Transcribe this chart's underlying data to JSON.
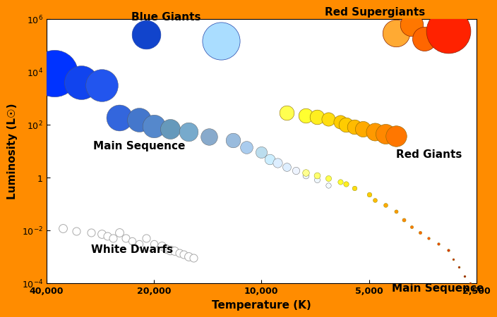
{
  "xlabel": "Temperature (K)",
  "ylabel": "Luminosity (L☉)",
  "xlim": [
    40000,
    2500
  ],
  "ylim": [
    0.0001,
    1000000.0
  ],
  "border_color": "#FF8C00",
  "background_color": "#ffffff",
  "main_sequence_blue": {
    "temps": [
      38000,
      32000,
      28000,
      25000,
      22000,
      20000,
      18000,
      16000,
      14000,
      12000,
      11000,
      10000,
      9500,
      9000,
      8500,
      8000,
      7500,
      7000,
      6500
    ],
    "lums": [
      9000,
      4000,
      3000,
      180,
      150,
      90,
      70,
      55,
      35,
      25,
      14,
      9,
      5,
      3.5,
      2.5,
      1.8,
      1.2,
      0.8,
      0.5
    ],
    "sizes": [
      90,
      65,
      62,
      50,
      46,
      44,
      38,
      36,
      32,
      28,
      24,
      22,
      20,
      18,
      16,
      14,
      12,
      11,
      10
    ],
    "colors": [
      "#0033ff",
      "#1144ee",
      "#2255ee",
      "#3366dd",
      "#4477cc",
      "#5588cc",
      "#6699bb",
      "#77aacc",
      "#88aacc",
      "#99bbdd",
      "#aaccee",
      "#bbddee",
      "#cceeff",
      "#ddeeff",
      "#ddeeff",
      "#eef4ff",
      "#eef6ff",
      "#f0f8ff",
      "#f4faff"
    ]
  },
  "main_sequence_yellow_red": {
    "temps": [
      7500,
      7000,
      6500,
      6000,
      5800,
      5500,
      5000,
      4800,
      4500,
      4200,
      4000,
      3800,
      3600,
      3400,
      3200,
      3000,
      2900,
      2800,
      2700,
      2600
    ],
    "lums": [
      1.5,
      1.2,
      0.9,
      0.7,
      0.55,
      0.4,
      0.22,
      0.14,
      0.09,
      0.05,
      0.025,
      0.013,
      0.008,
      0.005,
      0.003,
      0.0018,
      0.0008,
      0.0004,
      0.00018,
      0.0001
    ],
    "sizes": [
      13,
      12,
      11,
      10,
      10,
      9,
      9,
      8,
      8,
      7,
      7,
      6,
      6,
      5,
      5,
      5,
      4,
      4,
      4,
      4
    ],
    "colors": [
      "#ffff90",
      "#ffff70",
      "#ffff50",
      "#ffff30",
      "#ffee20",
      "#ffdd10",
      "#ffcc00",
      "#ffbb00",
      "#ffaa00",
      "#ff9900",
      "#ff8800",
      "#ff7700",
      "#ff6600",
      "#ff5500",
      "#ee4400",
      "#dd3300",
      "#cc2200",
      "#bb1100",
      "#aa0000",
      "#990000"
    ]
  },
  "blue_giants": [
    {
      "temp": 21000,
      "lum": 250000,
      "size": 55,
      "color": "#1144cc"
    },
    {
      "temp": 13000,
      "lum": 150000,
      "size": 72,
      "color": "#aaddff"
    }
  ],
  "red_supergiants": [
    {
      "temp": 4200,
      "lum": 300000,
      "size": 52,
      "color": "#ffaa33"
    },
    {
      "temp": 3800,
      "lum": 600000,
      "size": 44,
      "color": "#ff7700"
    },
    {
      "temp": 3500,
      "lum": 180000,
      "size": 46,
      "color": "#ff6600"
    },
    {
      "temp": 3000,
      "lum": 350000,
      "size": 85,
      "color": "#ff2200"
    }
  ],
  "red_giants": [
    {
      "temp": 8500,
      "lum": 280,
      "size": 28,
      "color": "#ffff50"
    },
    {
      "temp": 7500,
      "lum": 220,
      "size": 28,
      "color": "#ffff30"
    },
    {
      "temp": 7000,
      "lum": 200,
      "size": 28,
      "color": "#ffee20"
    },
    {
      "temp": 6500,
      "lum": 160,
      "size": 26,
      "color": "#ffdd10"
    },
    {
      "temp": 6000,
      "lum": 130,
      "size": 26,
      "color": "#ffcc00"
    },
    {
      "temp": 5800,
      "lum": 100,
      "size": 28,
      "color": "#ffcc00"
    },
    {
      "temp": 5500,
      "lum": 80,
      "size": 28,
      "color": "#ffbb00"
    },
    {
      "temp": 5200,
      "lum": 70,
      "size": 30,
      "color": "#ffaa00"
    },
    {
      "temp": 4800,
      "lum": 55,
      "size": 34,
      "color": "#ff9900"
    },
    {
      "temp": 4500,
      "lum": 45,
      "size": 38,
      "color": "#ff8800"
    },
    {
      "temp": 4200,
      "lum": 38,
      "size": 40,
      "color": "#ff7700"
    }
  ],
  "white_dwarfs": [
    {
      "temp": 36000,
      "lum": 0.012,
      "size": 16
    },
    {
      "temp": 33000,
      "lum": 0.009,
      "size": 15
    },
    {
      "temp": 30000,
      "lum": 0.008,
      "size": 15
    },
    {
      "temp": 28000,
      "lum": 0.007,
      "size": 16
    },
    {
      "temp": 27000,
      "lum": 0.006,
      "size": 15
    },
    {
      "temp": 26000,
      "lum": 0.005,
      "size": 15
    },
    {
      "temp": 25000,
      "lum": 0.008,
      "size": 16
    },
    {
      "temp": 24000,
      "lum": 0.005,
      "size": 15
    },
    {
      "temp": 23000,
      "lum": 0.004,
      "size": 14
    },
    {
      "temp": 22000,
      "lum": 0.003,
      "size": 14
    },
    {
      "temp": 21000,
      "lum": 0.005,
      "size": 15
    },
    {
      "temp": 20000,
      "lum": 0.003,
      "size": 14
    },
    {
      "temp": 19000,
      "lum": 0.0025,
      "size": 16
    },
    {
      "temp": 18500,
      "lum": 0.002,
      "size": 16
    },
    {
      "temp": 18000,
      "lum": 0.0018,
      "size": 17
    },
    {
      "temp": 17500,
      "lum": 0.0016,
      "size": 16
    },
    {
      "temp": 17000,
      "lum": 0.0014,
      "size": 15
    },
    {
      "temp": 16500,
      "lum": 0.0012,
      "size": 15
    },
    {
      "temp": 16000,
      "lum": 0.001,
      "size": 16
    },
    {
      "temp": 15500,
      "lum": 0.0009,
      "size": 15
    }
  ]
}
